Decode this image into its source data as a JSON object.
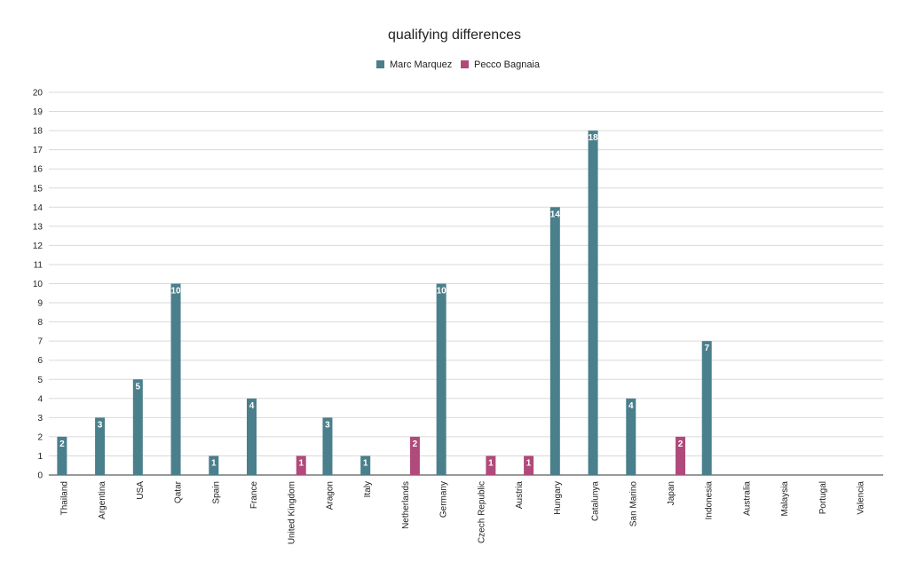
{
  "chart_data": {
    "type": "bar",
    "title": "qualifying differences",
    "xlabel": "",
    "ylabel": "",
    "ylim": [
      0,
      20
    ],
    "ytick_step": 1,
    "grid": true,
    "legend_position": "top-center",
    "categories": [
      "Thailand",
      "Argentina",
      "USA",
      "Qatar",
      "Spain",
      "France",
      "United Kingdom",
      "Aragon",
      "Italy",
      "Netherlands",
      "Germany",
      "Czech Republic",
      "Austria",
      "Hungary",
      "Catalunya",
      "San Marino",
      "Japan",
      "Indonesia",
      "Australia",
      "Malaysia",
      "Portugal",
      "Valencia"
    ],
    "series": [
      {
        "name": "Marc Marquez",
        "color": "#4a7f8c",
        "values": [
          2,
          3,
          5,
          10,
          1,
          4,
          null,
          3,
          1,
          null,
          10,
          null,
          null,
          14,
          18,
          4,
          null,
          7,
          null,
          null,
          null,
          null
        ]
      },
      {
        "name": "Pecco Bagnaia",
        "color": "#b04a7a",
        "values": [
          null,
          null,
          null,
          null,
          null,
          null,
          1,
          null,
          null,
          2,
          null,
          1,
          1,
          null,
          null,
          null,
          2,
          null,
          null,
          null,
          null,
          null
        ]
      }
    ]
  }
}
